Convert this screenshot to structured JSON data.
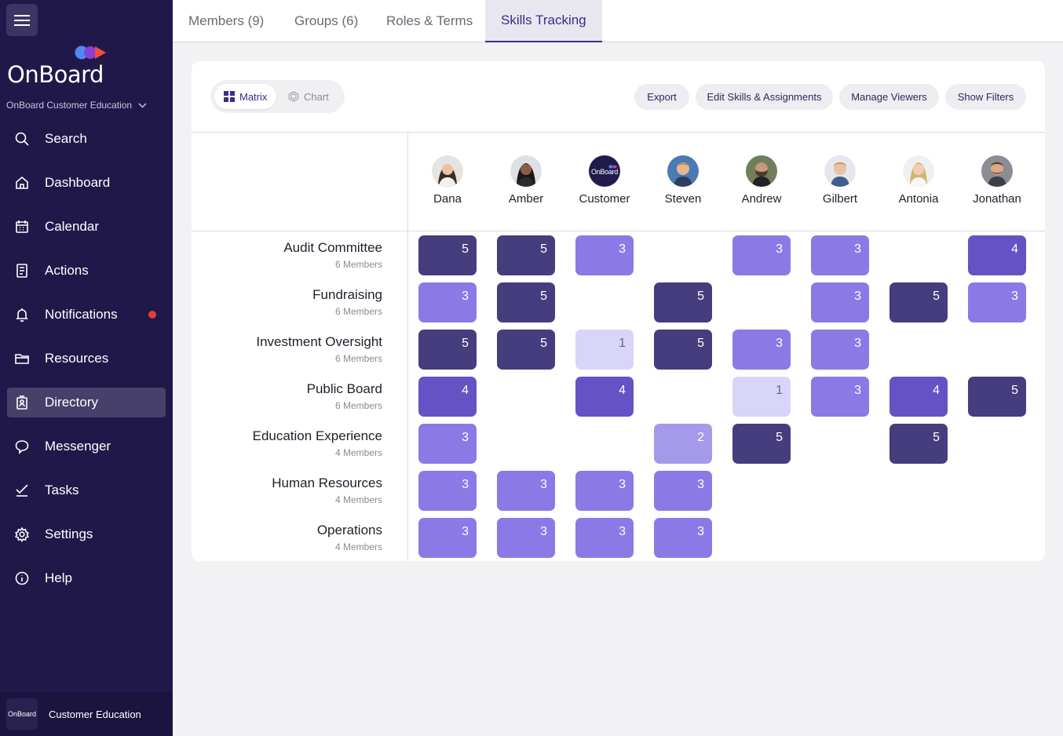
{
  "sidebar": {
    "logo_text": "OnBoard",
    "org_name": "OnBoard Customer Education",
    "items": [
      {
        "label": "Search",
        "icon": "search-icon"
      },
      {
        "label": "Dashboard",
        "icon": "home-icon"
      },
      {
        "label": "Calendar",
        "icon": "calendar-icon"
      },
      {
        "label": "Actions",
        "icon": "clipboard-icon"
      },
      {
        "label": "Notifications",
        "icon": "bell-icon"
      },
      {
        "label": "Resources",
        "icon": "folder-icon"
      },
      {
        "label": "Directory",
        "icon": "directory-icon"
      },
      {
        "label": "Messenger",
        "icon": "chat-icon"
      },
      {
        "label": "Tasks",
        "icon": "check-icon"
      },
      {
        "label": "Settings",
        "icon": "gear-icon"
      },
      {
        "label": "Help",
        "icon": "info-icon"
      }
    ],
    "active_item": "Directory",
    "footer_logo": "OnBoard",
    "footer_label": "Customer Education"
  },
  "tabs": [
    {
      "label": "Members (9)"
    },
    {
      "label": "Groups (6)"
    },
    {
      "label": "Roles & Terms"
    },
    {
      "label": "Skills Tracking"
    }
  ],
  "active_tab": "Skills Tracking",
  "view_toggle": {
    "matrix": "Matrix",
    "chart": "Chart",
    "selected": "Matrix"
  },
  "actions": {
    "export": "Export",
    "edit_skills": "Edit Skills & Assignments",
    "manage_viewers": "Manage Viewers",
    "show_filters": "Show Filters"
  },
  "people": [
    "Dana",
    "Amber",
    "Customer",
    "Steven",
    "Andrew",
    "Gilbert",
    "Antonia",
    "Jonathan"
  ],
  "customer_avatar_text": "OnBoard",
  "skills": [
    {
      "name": "Audit Committee",
      "members": "6 Members",
      "scores": [
        5,
        5,
        3,
        null,
        3,
        3,
        null,
        4
      ]
    },
    {
      "name": "Fundraising",
      "members": "6 Members",
      "scores": [
        3,
        5,
        null,
        5,
        null,
        3,
        5,
        3
      ]
    },
    {
      "name": "Investment Oversight",
      "members": "6 Members",
      "scores": [
        5,
        5,
        1,
        5,
        3,
        3,
        null,
        null
      ]
    },
    {
      "name": "Public Board",
      "members": "6 Members",
      "scores": [
        4,
        null,
        4,
        null,
        1,
        3,
        4,
        5
      ]
    },
    {
      "name": "Education Experience",
      "members": "4 Members",
      "scores": [
        3,
        null,
        null,
        2,
        5,
        null,
        5,
        null
      ]
    },
    {
      "name": "Human Resources",
      "members": "4 Members",
      "scores": [
        3,
        3,
        3,
        3,
        null,
        null,
        null,
        null
      ]
    },
    {
      "name": "Operations",
      "members": "4 Members",
      "scores": [
        3,
        3,
        3,
        3,
        null,
        null,
        null,
        null
      ]
    }
  ],
  "score_colors": {
    "1": "#d9d5f8",
    "2": "#a59ae9",
    "3": "#8b7ae6",
    "4": "#6552c4",
    "5": "#463d7e"
  },
  "score_text_colors": {
    "1": "#6a6a75",
    "2": "#ffffff",
    "3": "#ffffff",
    "4": "#ffffff",
    "5": "#ffffff"
  },
  "colors": {
    "sidebar": "#21184a",
    "accent": "#3b2e87",
    "notification": "#e63b3b"
  }
}
